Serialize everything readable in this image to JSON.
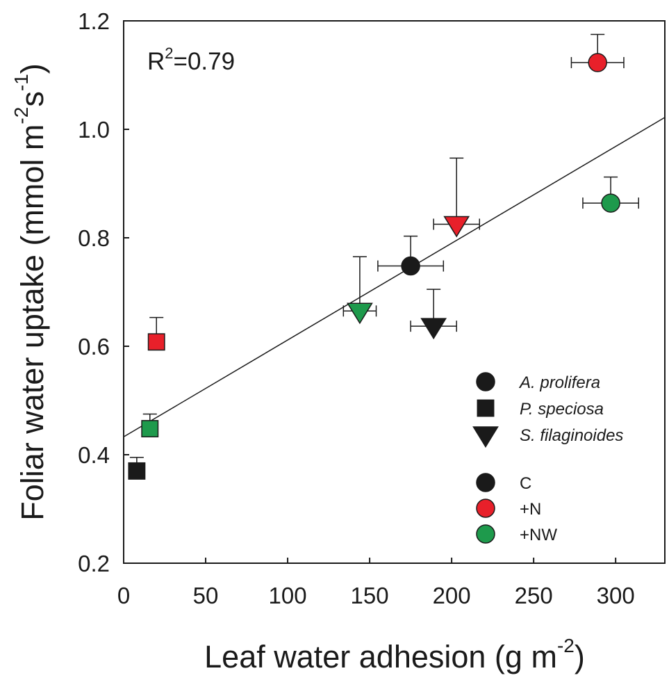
{
  "chart_data": {
    "type": "scatter",
    "title": "",
    "xlabel": {
      "main": "Leaf water adhesion (g m",
      "sup": "-2",
      "end": ")"
    },
    "ylabel": {
      "main": "Foliar water uptake (mmol m",
      "sup1": "-2",
      "mid": "s",
      "sup2": "-1",
      "end": ")"
    },
    "xlim": [
      0,
      330
    ],
    "ylim": [
      0.2,
      1.2
    ],
    "xticks": [
      0,
      50,
      100,
      150,
      200,
      250,
      300
    ],
    "yticks": [
      0.2,
      0.4,
      0.6,
      0.8,
      1.0,
      1.2
    ],
    "xtick_labels": [
      "0",
      "50",
      "100",
      "150",
      "200",
      "250",
      "300"
    ],
    "ytick_labels": [
      "0.2",
      "0.4",
      "0.6",
      "0.8",
      "1.0",
      "1.2"
    ],
    "annotation": {
      "text_main": "R",
      "sup": "2",
      "text_end": "=0.79"
    },
    "regression": {
      "x": [
        0,
        330
      ],
      "y": [
        0.433,
        1.022
      ]
    },
    "colors": {
      "C": "#1a1a1a",
      "+N": "#e8202a",
      "+NW": "#1e9a4c",
      "line": "#1a1a1a"
    },
    "points": [
      {
        "species": "A. prolifera",
        "shape": "circle",
        "treatment": "C",
        "x": 175,
        "y": 0.748,
        "xerr": 20,
        "yerr": 0.055
      },
      {
        "species": "A. prolifera",
        "shape": "circle",
        "treatment": "+N",
        "x": 289,
        "y": 1.123,
        "xerr": 16,
        "yerr": 0.052
      },
      {
        "species": "A. prolifera",
        "shape": "circle",
        "treatment": "+NW",
        "x": 297,
        "y": 0.864,
        "xerr": 17,
        "yerr": 0.048
      },
      {
        "species": "P. speciosa",
        "shape": "square",
        "treatment": "C",
        "x": 8,
        "y": 0.37,
        "xerr": 0,
        "yerr": 0.025
      },
      {
        "species": "P. speciosa",
        "shape": "square",
        "treatment": "+N",
        "x": 20,
        "y": 0.608,
        "xerr": 0,
        "yerr": 0.045
      },
      {
        "species": "P. speciosa",
        "shape": "square",
        "treatment": "+NW",
        "x": 16,
        "y": 0.448,
        "xerr": 0,
        "yerr": 0.027
      },
      {
        "species": "S. filaginoides",
        "shape": "triangle-down",
        "treatment": "C",
        "x": 189,
        "y": 0.637,
        "xerr": 14,
        "yerr": 0.068
      },
      {
        "species": "S. filaginoides",
        "shape": "triangle-down",
        "treatment": "+N",
        "x": 203,
        "y": 0.825,
        "xerr": 14,
        "yerr": 0.122
      },
      {
        "species": "S. filaginoides",
        "shape": "triangle-down",
        "treatment": "+NW",
        "x": 144,
        "y": 0.665,
        "xerr": 10,
        "yerr": 0.1
      }
    ],
    "legend": {
      "position": "lower-right",
      "species": [
        {
          "label": "A. prolifera",
          "shape": "circle"
        },
        {
          "label": "P. speciosa",
          "shape": "square"
        },
        {
          "label": "S. filaginoides",
          "shape": "triangle-down"
        }
      ],
      "treatments": [
        {
          "label": "C",
          "color_key": "C"
        },
        {
          "label": "+N",
          "color_key": "+N"
        },
        {
          "label": "+NW",
          "color_key": "+NW"
        }
      ]
    }
  }
}
